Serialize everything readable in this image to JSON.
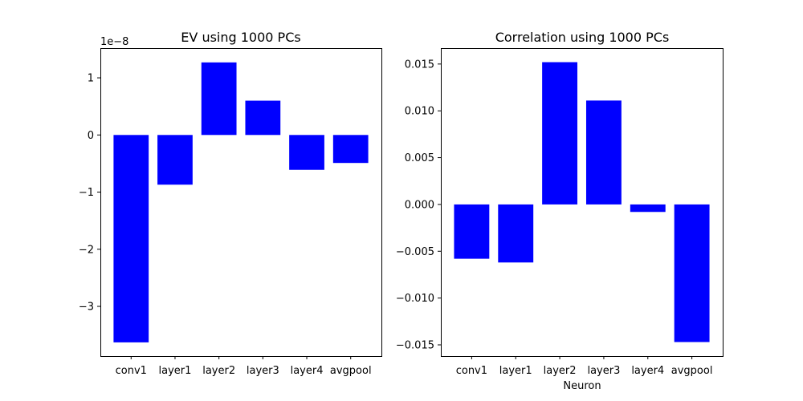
{
  "chart_data": [
    {
      "type": "bar",
      "title": "EV using 1000 PCs",
      "xlabel": "",
      "ylabel": "",
      "offset_text": "1e−8",
      "categories": [
        "conv1",
        "layer1",
        "layer2",
        "layer3",
        "layer4",
        "avgpool"
      ],
      "values": [
        -3.63,
        -0.87,
        1.27,
        0.6,
        -0.61,
        -0.49
      ],
      "ylim": [
        -3.87,
        1.52
      ],
      "yticks": [
        1,
        0,
        -1,
        -2,
        -3
      ],
      "ytick_labels": [
        "1",
        "0",
        "−1",
        "−2",
        "−3"
      ],
      "bar_color": "#0000ff",
      "grid": false
    },
    {
      "type": "bar",
      "title": "Correlation using 1000 PCs",
      "xlabel": "Neuron",
      "ylabel": "",
      "categories": [
        "conv1",
        "layer1",
        "layer2",
        "layer3",
        "layer4",
        "avgpool"
      ],
      "values": [
        -0.0058,
        -0.0062,
        0.0152,
        0.0111,
        -0.0008,
        -0.0147
      ],
      "ylim": [
        -0.0162,
        0.0167
      ],
      "yticks": [
        0.015,
        0.01,
        0.005,
        0,
        -0.005,
        -0.01,
        -0.015
      ],
      "ytick_labels": [
        "0.015",
        "0.010",
        "0.005",
        "0.000",
        "−0.005",
        "−0.010",
        "−0.015"
      ],
      "bar_color": "#0000ff",
      "grid": false
    }
  ]
}
